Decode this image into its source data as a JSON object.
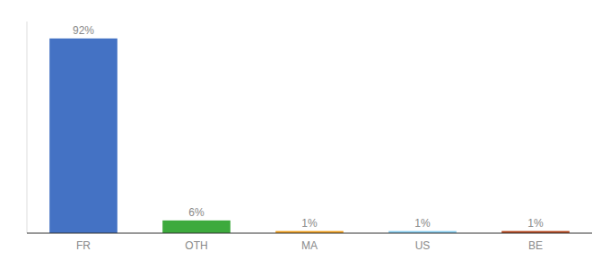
{
  "chart_data": {
    "type": "bar",
    "categories": [
      "FR",
      "OTH",
      "MA",
      "US",
      "BE"
    ],
    "values": [
      92,
      6,
      1,
      1,
      1
    ],
    "value_labels": [
      "92%",
      "6%",
      "1%",
      "1%",
      "1%"
    ],
    "colors": [
      "#4472c4",
      "#3daa3d",
      "#f0a020",
      "#88ccee",
      "#b84a20"
    ],
    "ylim": [
      0,
      100
    ],
    "data_labels": true,
    "tick_labels": "x"
  }
}
